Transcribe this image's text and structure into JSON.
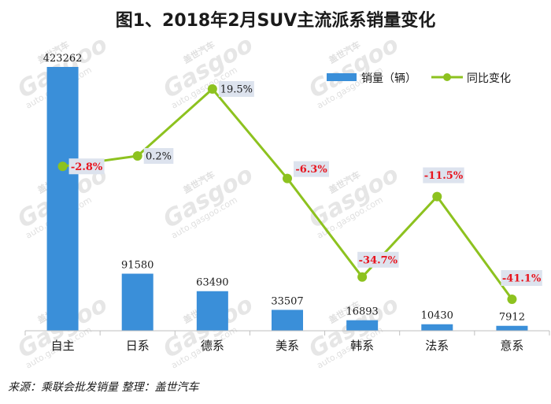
{
  "title": "图1、2018年2月SUV主流派系销量变化",
  "source": "来源：乘联会批发销量  整理：盖世汽车",
  "watermark": {
    "brand": "Gasgoo",
    "url": "auto.gasgoo.com",
    "cn": "盖世汽车"
  },
  "legend": {
    "bar": "销量（辆）",
    "line": "同比变化"
  },
  "colors": {
    "bar": "#3a8fd9",
    "line": "#8dc21f",
    "label_box": "#dde3ee",
    "negative": "#e8141e"
  },
  "chart_data": {
    "type": "bar",
    "categories": [
      "自主",
      "日系",
      "德系",
      "美系",
      "韩系",
      "法系",
      "意系"
    ],
    "series": [
      {
        "name": "销量（辆）",
        "type": "bar",
        "values": [
          423262,
          91580,
          63490,
          33507,
          16893,
          10430,
          7912
        ],
        "labels": [
          "423262",
          "91580",
          "63490",
          "33507",
          "16893",
          "10430",
          "7912"
        ]
      },
      {
        "name": "同比变化",
        "type": "line",
        "values": [
          -2.8,
          0.2,
          19.5,
          -6.3,
          -34.7,
          -11.5,
          -41.1
        ],
        "labels": [
          "-2.8%",
          "0.2%",
          "19.5%",
          "-6.3%",
          "-34.7%",
          "-11.5%",
          "-41.1%"
        ]
      }
    ],
    "legend_position": "top-right",
    "grid": false
  }
}
